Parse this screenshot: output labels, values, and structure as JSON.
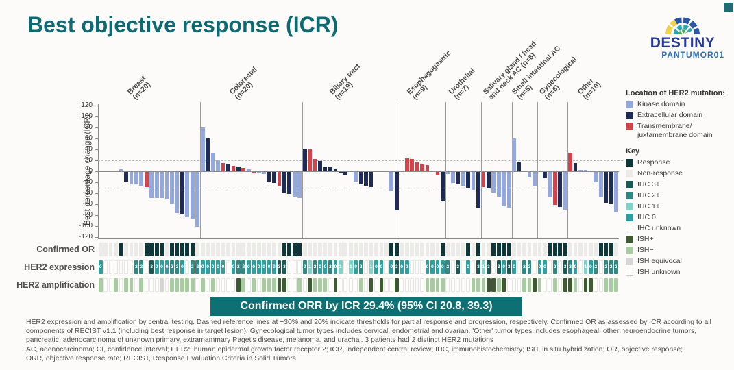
{
  "title": "Best objective response (ICR)",
  "logo": {
    "line1": "DESTINY",
    "line2": "PANTUMOR01"
  },
  "banner": "Confirmed ORR by ICR 29.4% (95% CI 20.8, 39.3)",
  "row_labels": {
    "confirmed_or": "Confirmed OR",
    "her2_expression": "HER2 expression",
    "her2_amplification": "HER2 amplification"
  },
  "colors": {
    "response": "#0f3638",
    "non_response": "#ebebe8",
    "unknown_bg": "#fdfdfc",
    "unknown_border": "#e7e6e4",
    "expr": {
      "0": "#2f9e9c",
      "1": "#83d2c7",
      "2": "#338783",
      "3": "#1e5855"
    },
    "amp": {
      "P": "#3e5a33",
      "N": "#a9cba1",
      "E": "#d5d5d3"
    },
    "mutation": {
      "K": "#95a8db",
      "E": "#1d2b55",
      "T": "#d2434b"
    },
    "accent_teal": "#0c6a72",
    "banner_bg": "#0d7174"
  },
  "mutation_legend": {
    "title": "Location of HER2 mutation:",
    "items": [
      {
        "label": "Kinase domain",
        "color": "#95a8db"
      },
      {
        "label": "Extracellular domain",
        "color": "#1d2b55"
      },
      {
        "label": "Transmembrane/\njuxtamembrane domain",
        "color": "#d2434b"
      }
    ]
  },
  "key_legend": {
    "title": "Key",
    "items": [
      {
        "label": "Response",
        "color": "#0f3638"
      },
      {
        "label": "Non-response",
        "color": "#ebebe8"
      },
      {
        "label": "IHC 3+",
        "color": "#1e5855"
      },
      {
        "label": "IHC 2+",
        "color": "#338783"
      },
      {
        "label": "IHC 1+",
        "color": "#83d2c7"
      },
      {
        "label": "IHC 0",
        "color": "#2f9e9c"
      },
      {
        "label": "IHC unknown",
        "color": "#ffffff",
        "border": true
      },
      {
        "label": "ISH+",
        "color": "#3e5a33"
      },
      {
        "label": "ISH−",
        "color": "#a9cba1"
      },
      {
        "label": "ISH equivocal",
        "color": "#d5d5d3"
      },
      {
        "label": "ISH unknown",
        "color": "#ffffff",
        "border": true
      }
    ]
  },
  "chart_data": {
    "type": "bar",
    "subtype": "waterfall",
    "ylabel": "Best percentage change (ICR)",
    "ylim": [
      -120,
      120
    ],
    "yticks": [
      120,
      100,
      80,
      60,
      40,
      20,
      0,
      -20,
      -40,
      -60,
      -80,
      -100,
      -120
    ],
    "reference_lines": [
      20,
      -30
    ],
    "grid": false,
    "legend_position": "right",
    "groups": [
      {
        "label_lines": [
          "Breast",
          "(n=20)"
        ],
        "n": 20,
        "bars": [
          null,
          null,
          null,
          null,
          {
            "v": 4,
            "m": "K"
          },
          {
            "v": -18,
            "m": "E"
          },
          {
            "v": -22,
            "m": "K"
          },
          {
            "v": -23,
            "m": "K"
          },
          {
            "v": -25,
            "m": "K"
          },
          {
            "v": -28,
            "m": "T"
          },
          {
            "v": -47,
            "m": "K"
          },
          {
            "v": -48,
            "m": "K"
          },
          {
            "v": -47,
            "m": "K"
          },
          {
            "v": -50,
            "m": "K"
          },
          {
            "v": -58,
            "m": "K"
          },
          {
            "v": -75,
            "m": "K"
          },
          {
            "v": -78,
            "m": "E"
          },
          {
            "v": -83,
            "m": "K"
          },
          {
            "v": -85,
            "m": "K"
          },
          {
            "v": -100,
            "m": "K"
          }
        ],
        "confirmed_or": [
          0,
          0,
          0,
          0,
          1,
          0,
          0,
          0,
          0,
          1,
          1,
          1,
          1,
          0,
          1,
          1,
          1,
          1,
          1,
          0
        ],
        "her2_expression": [
          "0",
          "U",
          "U",
          "U",
          "U",
          "U",
          "U",
          "2",
          "2",
          "U",
          "3",
          "0",
          "0",
          "0",
          "2",
          "2",
          "0",
          "U",
          "2",
          "2"
        ],
        "her2_amplification": [
          "N",
          "U",
          "U",
          "N",
          "U",
          "N",
          "N",
          "U",
          "N",
          "U",
          "U",
          "U",
          "E",
          "U",
          "N",
          "N",
          "N",
          "N",
          "N",
          "U"
        ]
      },
      {
        "label_lines": [
          "Colorectal",
          "(n=20)"
        ],
        "n": 20,
        "bars": [
          {
            "v": 80,
            "m": "K"
          },
          {
            "v": 60,
            "m": "E"
          },
          {
            "v": 32,
            "m": "K"
          },
          {
            "v": 20,
            "m": "K"
          },
          {
            "v": 15,
            "m": "T"
          },
          {
            "v": 12,
            "m": "E"
          },
          {
            "v": 10,
            "m": "T"
          },
          {
            "v": 8,
            "m": "E"
          },
          {
            "v": 6,
            "m": "T"
          },
          {
            "v": 4,
            "m": "K"
          },
          {
            "v": -2,
            "m": "T"
          },
          {
            "v": -3,
            "m": "K"
          },
          {
            "v": -4,
            "m": "K"
          },
          {
            "v": -17,
            "m": "E"
          },
          {
            "v": -20,
            "m": "E"
          },
          {
            "v": -26,
            "m": "T"
          },
          {
            "v": -38,
            "m": "E"
          },
          {
            "v": -40,
            "m": "E"
          },
          {
            "v": -45,
            "m": "K"
          },
          {
            "v": -47,
            "m": "K"
          }
        ],
        "confirmed_or": [
          0,
          0,
          0,
          0,
          0,
          0,
          0,
          0,
          0,
          0,
          0,
          0,
          0,
          0,
          0,
          0,
          1,
          1,
          1,
          1
        ],
        "her2_expression": [
          "0",
          "0",
          "0",
          "0",
          "0",
          "U",
          "0",
          "2",
          "2",
          "0",
          "0",
          "0",
          "0",
          "0",
          "0",
          "3",
          "3",
          "U",
          "U",
          "U"
        ],
        "her2_amplification": [
          "N",
          "U",
          "N",
          "U",
          "U",
          "U",
          "U",
          "P",
          "N",
          "U",
          "N",
          "U",
          "N",
          "N",
          "N",
          "P",
          "P",
          "U",
          "U",
          "N"
        ]
      },
      {
        "label_lines": [
          "Biliary tract",
          "(n=19)"
        ],
        "n": 19,
        "bars": [
          {
            "v": 41,
            "m": "E"
          },
          {
            "v": 40,
            "m": "T"
          },
          {
            "v": 23,
            "m": "T"
          },
          {
            "v": 19,
            "m": "E"
          },
          {
            "v": 8,
            "m": "E"
          },
          {
            "v": 7,
            "m": "E"
          },
          {
            "v": 4,
            "m": "E"
          },
          {
            "v": -2,
            "m": "E"
          },
          {
            "v": -5,
            "m": "E"
          },
          null,
          {
            "v": -18,
            "m": "K"
          },
          {
            "v": -22,
            "m": "E"
          },
          {
            "v": -25,
            "m": "E"
          },
          {
            "v": -27,
            "m": "E"
          },
          null,
          null,
          null,
          {
            "v": -35,
            "m": "K"
          },
          {
            "v": -70,
            "m": "E"
          }
        ],
        "confirmed_or": [
          0,
          0,
          0,
          0,
          0,
          0,
          0,
          0,
          0,
          0,
          0,
          0,
          0,
          0,
          0,
          0,
          0,
          1,
          1
        ],
        "her2_expression": [
          "2",
          "1",
          "2",
          "0",
          "0",
          "2",
          "0",
          "1",
          "U",
          "1",
          "0",
          "2",
          "U",
          "1",
          "0",
          "0",
          "U",
          "0",
          "3"
        ],
        "her2_amplification": [
          "U",
          "P",
          "N",
          "N",
          "N",
          "U",
          "P",
          "U",
          "U",
          "U",
          "U",
          "N",
          "U",
          "P",
          "U",
          "P",
          "U",
          "U",
          "P"
        ]
      },
      {
        "label_lines": [
          "Esophagogastric",
          "(n=9)"
        ],
        "n": 9,
        "bars": [
          null,
          {
            "v": 24,
            "m": "T"
          },
          {
            "v": 22,
            "m": "T"
          },
          {
            "v": 16,
            "m": "T"
          },
          {
            "v": 13,
            "m": "T"
          },
          {
            "v": 11,
            "m": "T"
          },
          null,
          {
            "v": -6,
            "m": "T"
          },
          {
            "v": -54,
            "m": "E"
          }
        ],
        "confirmed_or": [
          0,
          0,
          0,
          0,
          0,
          0,
          0,
          0,
          1
        ],
        "her2_expression": [
          "0",
          "0",
          "U",
          "U",
          "U",
          "0",
          "0",
          "0",
          "0"
        ],
        "her2_amplification": [
          "U",
          "U",
          "U",
          "U",
          "U",
          "N",
          "N",
          "N",
          "N"
        ]
      },
      {
        "label_lines": [
          "Urothelial",
          "(n=7)"
        ],
        "n": 7,
        "bars": [
          {
            "v": -4,
            "m": "K"
          },
          {
            "v": -20,
            "m": "K"
          },
          {
            "v": -22,
            "m": "E"
          },
          {
            "v": -25,
            "m": "K"
          },
          {
            "v": -30,
            "m": "E"
          },
          {
            "v": -33,
            "m": "K"
          },
          {
            "v": -65,
            "m": "E"
          }
        ],
        "confirmed_or": [
          0,
          0,
          0,
          0,
          1,
          0,
          1
        ],
        "her2_expression": [
          "2",
          "U",
          "3",
          "U",
          "0",
          "U",
          "3"
        ],
        "her2_amplification": [
          "U",
          "U",
          "U",
          "U",
          "U",
          "N",
          "N"
        ]
      },
      {
        "label_lines": [
          "Salivary gland / head",
          "and neck AC (n=6)"
        ],
        "n": 6,
        "bars": [
          {
            "v": -28,
            "m": "T"
          },
          {
            "v": -30,
            "m": "E"
          },
          {
            "v": -37,
            "m": "K"
          },
          {
            "v": -45,
            "m": "K"
          },
          {
            "v": -62,
            "m": "K"
          },
          {
            "v": -65,
            "m": "K"
          }
        ],
        "confirmed_or": [
          0,
          0,
          1,
          1,
          1,
          1
        ],
        "her2_expression": [
          "1",
          "3",
          "U",
          "3",
          "0",
          "3"
        ],
        "her2_amplification": [
          "N",
          "P",
          "P",
          "N",
          "P",
          "U"
        ]
      },
      {
        "label_lines": [
          "Small intestinal AC",
          "(n=5)"
        ],
        "n": 5,
        "bars": [
          {
            "v": 60,
            "m": "K"
          },
          {
            "v": 16,
            "m": "E"
          },
          null,
          {
            "v": -10,
            "m": "K"
          },
          {
            "v": -26,
            "m": "K"
          }
        ],
        "confirmed_or": [
          0,
          0,
          0,
          0,
          0
        ],
        "her2_expression": [
          "0",
          "U",
          "2",
          "2",
          "U"
        ],
        "her2_amplification": [
          "U",
          "U",
          "N",
          "N",
          "P"
        ]
      },
      {
        "label_lines": [
          "Gynecological",
          "(n=6)"
        ],
        "n": 6,
        "bars": [
          null,
          {
            "v": -11,
            "m": "E"
          },
          {
            "v": -46,
            "m": "K"
          },
          {
            "v": -60,
            "m": "T"
          },
          {
            "v": -64,
            "m": "E"
          },
          {
            "v": -69,
            "m": "K"
          }
        ],
        "confirmed_or": [
          0,
          0,
          1,
          1,
          1,
          1
        ],
        "her2_expression": [
          "0",
          "0",
          "U",
          "2",
          "U",
          "3"
        ],
        "her2_amplification": [
          "N",
          "U",
          "U",
          "N",
          "U",
          "P"
        ]
      },
      {
        "label_lines": [
          "Other",
          "(n=10)"
        ],
        "n": 10,
        "bars": [
          {
            "v": 34,
            "m": "T"
          },
          {
            "v": 15,
            "m": "E"
          },
          {
            "v": 3,
            "m": "K"
          },
          {
            "v": 2,
            "m": "K"
          },
          null,
          {
            "v": -19,
            "m": "K"
          },
          {
            "v": -46,
            "m": "K"
          },
          {
            "v": -56,
            "m": "E"
          },
          {
            "v": -58,
            "m": "E"
          },
          {
            "v": -74,
            "m": "K"
          }
        ],
        "confirmed_or": [
          0,
          0,
          0,
          0,
          0,
          0,
          1,
          1,
          1,
          0
        ],
        "her2_expression": [
          "2",
          "0",
          "U",
          "1",
          "0",
          "2",
          "U",
          "2",
          "2",
          "2"
        ],
        "her2_amplification": [
          "P",
          "N",
          "U",
          "P",
          "P",
          "U",
          "U",
          "N",
          "N",
          "N"
        ]
      }
    ]
  },
  "footnotes": [
    "HER2 expression and amplification by central testing. Dashed reference lines at −30% and 20% indicate thresholds for partial response and progression, respectively. Confirmed OR as assessed by ICR according to all",
    "components of RECIST v1.1 (including best response in target lesion). Gynecological tumor types includes cervical, endometrial and ovarian. 'Other' tumor types includes esophageal, other neuroendocrine tumors,",
    "pancreatic, adenocarcinoma of unknown primary, extramammary Paget's disease, melanoma, and urachal. 3 patients had 2 distinct HER2 mutations",
    "AC, adenocarcinoma; CI, confidence interval; HER2, human epidermal growth factor receptor 2; ICR, independent central review; IHC, immunohistochemistry; ISH, in situ hybridization; OR, objective response;",
    "ORR, objective response rate; RECIST, Response Evaluation Criteria in Solid Tumors"
  ]
}
